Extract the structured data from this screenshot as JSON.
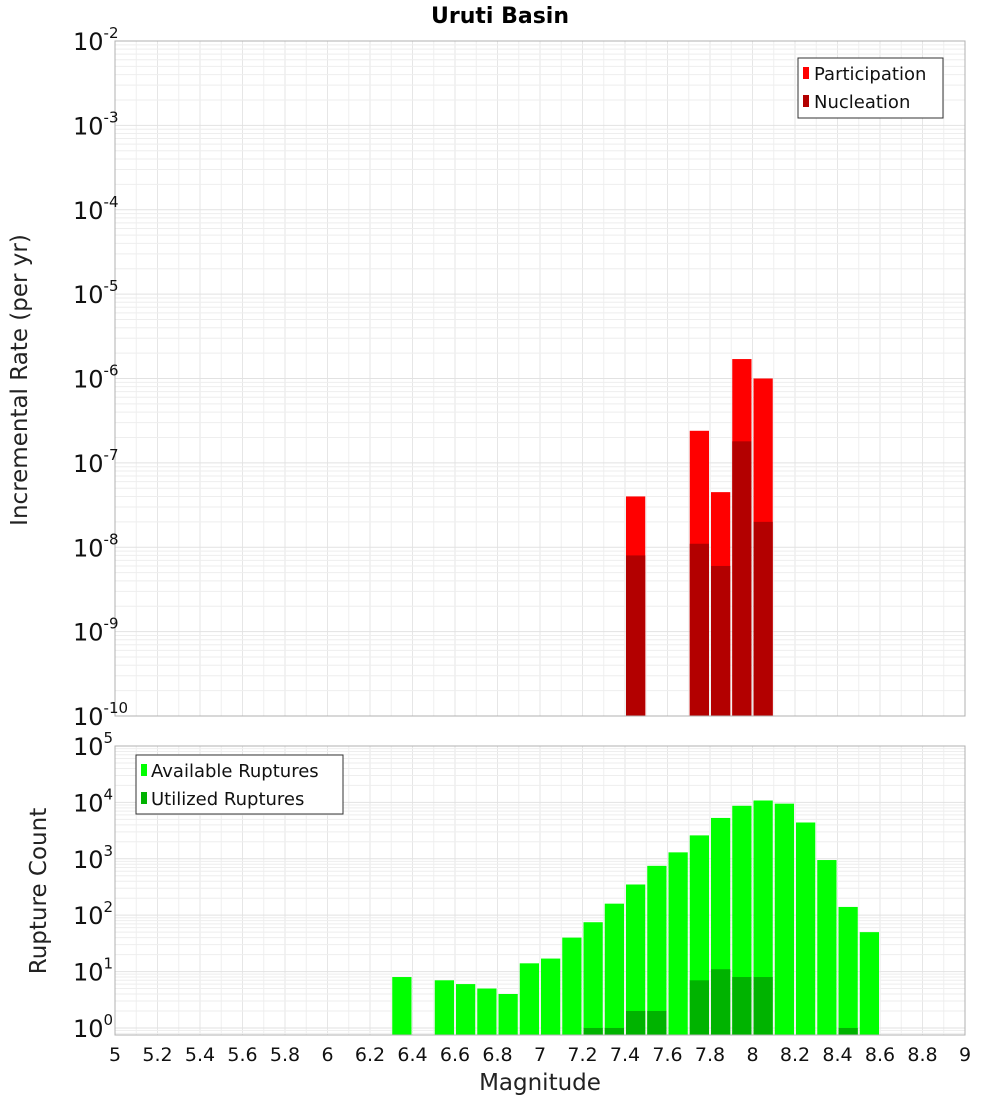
{
  "chart_data": [
    {
      "type": "bar",
      "title": "Uruti Basin",
      "ylabel": "Incremental Rate (per yr)",
      "xlabel": "",
      "xlim": [
        5,
        9
      ],
      "ylim": [
        1e-10,
        0.01
      ],
      "yscale": "log",
      "bin_width": 0.1,
      "grid": true,
      "legend_position": "top-right",
      "y_ticks": [
        {
          "base": "10",
          "exp": "-10",
          "value": 1e-10
        },
        {
          "base": "10",
          "exp": "-9",
          "value": 1e-09
        },
        {
          "base": "10",
          "exp": "-8",
          "value": 1e-08
        },
        {
          "base": "10",
          "exp": "-7",
          "value": 1e-07
        },
        {
          "base": "10",
          "exp": "-6",
          "value": 1e-06
        },
        {
          "base": "10",
          "exp": "-5",
          "value": 1e-05
        },
        {
          "base": "10",
          "exp": "-4",
          "value": 0.0001
        },
        {
          "base": "10",
          "exp": "-3",
          "value": 0.001
        },
        {
          "base": "10",
          "exp": "-2",
          "value": 0.01
        }
      ],
      "series": [
        {
          "name": "Participation",
          "color": "#ff0000",
          "x": [
            7.45,
            7.75,
            7.85,
            7.95,
            8.05
          ],
          "values": [
            4e-08,
            2.4e-07,
            4.5e-08,
            1.7e-06,
            1e-06
          ]
        },
        {
          "name": "Nucleation",
          "color": "#b30000",
          "x": [
            7.45,
            7.75,
            7.85,
            7.95,
            8.05
          ],
          "values": [
            8e-09,
            1.1e-08,
            6e-09,
            1.8e-07,
            2e-08
          ]
        }
      ]
    },
    {
      "type": "bar",
      "title": "",
      "ylabel": "Rupture Count",
      "xlabel": "Magnitude",
      "xlim": [
        5,
        9
      ],
      "ylim": [
        0.75,
        100000
      ],
      "yscale": "log",
      "bin_width": 0.1,
      "grid": true,
      "legend_position": "top-left",
      "x_ticks": [
        "5",
        "5.2",
        "5.4",
        "5.6",
        "5.8",
        "6",
        "6.2",
        "6.4",
        "6.6",
        "6.8",
        "7",
        "7.2",
        "7.4",
        "7.6",
        "7.8",
        "8",
        "8.2",
        "8.4",
        "8.6",
        "8.8",
        "9"
      ],
      "y_ticks": [
        {
          "base": "10",
          "exp": "0",
          "value": 1
        },
        {
          "base": "10",
          "exp": "1",
          "value": 10
        },
        {
          "base": "10",
          "exp": "2",
          "value": 100
        },
        {
          "base": "10",
          "exp": "3",
          "value": 1000
        },
        {
          "base": "10",
          "exp": "4",
          "value": 10000
        },
        {
          "base": "10",
          "exp": "5",
          "value": 100000
        }
      ],
      "series": [
        {
          "name": "Available Ruptures",
          "color": "#00ff00",
          "x": [
            6.35,
            6.55,
            6.65,
            6.75,
            6.85,
            6.95,
            7.05,
            7.15,
            7.25,
            7.35,
            7.45,
            7.55,
            7.65,
            7.75,
            7.85,
            7.95,
            8.05,
            8.15,
            8.25,
            8.35,
            8.45,
            8.55
          ],
          "values": [
            8,
            7,
            6,
            5,
            4,
            14,
            17,
            40,
            75,
            160,
            350,
            750,
            1300,
            2600,
            5300,
            8700,
            10800,
            9500,
            4400,
            950,
            140,
            50
          ]
        },
        {
          "name": "Utilized Ruptures",
          "color": "#00b300",
          "x": [
            7.25,
            7.35,
            7.45,
            7.55,
            7.75,
            7.85,
            7.95,
            8.05,
            8.45
          ],
          "values": [
            1,
            1,
            2,
            2,
            7,
            11,
            8,
            8,
            1
          ]
        }
      ]
    }
  ]
}
